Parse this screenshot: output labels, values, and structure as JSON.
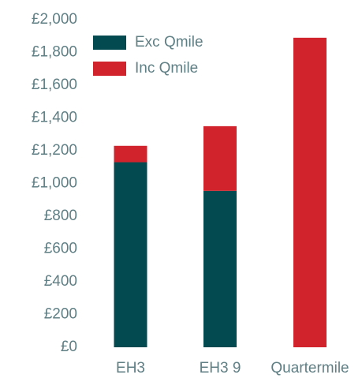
{
  "chart_data": {
    "type": "stacked_bar",
    "categories": [
      "EH3",
      "EH3 9",
      "Quartermile"
    ],
    "series": [
      {
        "name": "Exc Qmile",
        "color": "#034a50",
        "values": [
          1130,
          955,
          0
        ]
      },
      {
        "name": "Inc Qmile",
        "color": "#d0232c",
        "values": [
          100,
          395,
          1890
        ]
      }
    ],
    "ylim": [
      0,
      2000
    ],
    "yticks": [
      {
        "value": 0,
        "label": "£0"
      },
      {
        "value": 200,
        "label": "£200"
      },
      {
        "value": 400,
        "label": "£400"
      },
      {
        "value": 600,
        "label": "£600"
      },
      {
        "value": 800,
        "label": "£800"
      },
      {
        "value": 1000,
        "label": "£1,000"
      },
      {
        "value": 1200,
        "label": "£1,200"
      },
      {
        "value": 1400,
        "label": "£1,400"
      },
      {
        "value": 1600,
        "label": "£1,600"
      },
      {
        "value": 1800,
        "label": "£1,800"
      },
      {
        "value": 2000,
        "label": "£2,000"
      }
    ],
    "grid": false,
    "legend": "top-left"
  }
}
